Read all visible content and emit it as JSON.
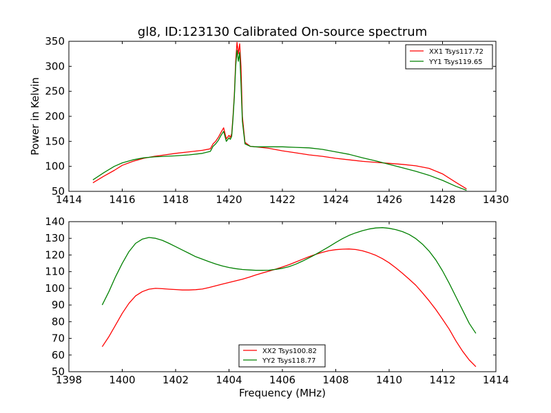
{
  "chart_data": [
    {
      "type": "line",
      "title": "gl8, ID:123130 Calibrated On-source spectrum",
      "xlabel": "",
      "ylabel": "Power in Kelvin",
      "xlim": [
        1414,
        1430
      ],
      "ylim": [
        50,
        350
      ],
      "xticks": [
        1414,
        1416,
        1418,
        1420,
        1422,
        1424,
        1426,
        1428,
        1430
      ],
      "yticks": [
        50,
        100,
        150,
        200,
        250,
        300,
        350
      ],
      "grid": false,
      "legend_position": "top-right",
      "series": [
        {
          "name": "XX1 Tsys117.72",
          "color": "#ff0000",
          "x": [
            1414.9,
            1415.3,
            1415.7,
            1416.0,
            1416.4,
            1416.8,
            1417.2,
            1417.6,
            1418.0,
            1418.5,
            1419.0,
            1419.3,
            1419.4,
            1419.5,
            1419.6,
            1419.7,
            1419.8,
            1419.9,
            1420.0,
            1420.05,
            1420.1,
            1420.15,
            1420.2,
            1420.25,
            1420.3,
            1420.35,
            1420.4,
            1420.45,
            1420.5,
            1420.6,
            1420.8,
            1421.0,
            1421.5,
            1422.0,
            1422.5,
            1423.0,
            1423.5,
            1424.0,
            1424.5,
            1425.0,
            1425.5,
            1426.0,
            1426.5,
            1427.0,
            1427.5,
            1428.0,
            1428.5,
            1428.9
          ],
          "y": [
            67,
            80,
            92,
            102,
            110,
            116,
            120,
            123,
            126,
            129,
            132,
            135,
            145,
            150,
            158,
            168,
            177,
            155,
            162,
            158,
            165,
            200,
            245,
            310,
            348,
            325,
            345,
            300,
            200,
            148,
            140,
            139,
            136,
            131,
            127,
            123,
            120,
            116,
            113,
            110,
            108,
            106,
            104,
            101,
            96,
            85,
            68,
            55
          ]
        },
        {
          "name": "YY1 Tsys119.65",
          "color": "#008000",
          "x": [
            1414.9,
            1415.3,
            1415.7,
            1416.0,
            1416.4,
            1416.8,
            1417.2,
            1417.6,
            1418.0,
            1418.5,
            1419.0,
            1419.3,
            1419.4,
            1419.5,
            1419.6,
            1419.7,
            1419.8,
            1419.9,
            1420.0,
            1420.05,
            1420.1,
            1420.15,
            1420.2,
            1420.25,
            1420.3,
            1420.35,
            1420.4,
            1420.45,
            1420.5,
            1420.6,
            1420.8,
            1421.0,
            1421.5,
            1422.0,
            1422.5,
            1423.0,
            1423.5,
            1424.0,
            1424.5,
            1425.0,
            1425.5,
            1426.0,
            1426.5,
            1427.0,
            1427.5,
            1428.0,
            1428.5,
            1428.9
          ],
          "y": [
            73,
            87,
            100,
            107,
            113,
            117,
            119,
            120,
            121,
            123,
            126,
            130,
            140,
            145,
            152,
            162,
            170,
            150,
            157,
            154,
            160,
            195,
            240,
            300,
            332,
            310,
            328,
            265,
            190,
            145,
            140,
            139,
            139,
            139,
            138,
            137,
            134,
            129,
            124,
            117,
            111,
            104,
            97,
            90,
            82,
            72,
            60,
            52
          ]
        }
      ]
    },
    {
      "type": "line",
      "title": "",
      "xlabel": "Frequency (MHz)",
      "ylabel": "",
      "xlim": [
        1398,
        1414
      ],
      "ylim": [
        50,
        140
      ],
      "xticks": [
        1398,
        1400,
        1402,
        1404,
        1406,
        1408,
        1410,
        1412,
        1414
      ],
      "yticks": [
        50,
        60,
        70,
        80,
        90,
        100,
        110,
        120,
        130,
        140
      ],
      "grid": false,
      "legend_position": "bottom-center",
      "series": [
        {
          "name": "XX2 Tsys100.82",
          "color": "#ff0000",
          "x": [
            1399.25,
            1399.5,
            1399.75,
            1400.0,
            1400.25,
            1400.5,
            1400.75,
            1401.0,
            1401.25,
            1401.5,
            1401.75,
            1402.0,
            1402.25,
            1402.5,
            1402.75,
            1403.0,
            1403.25,
            1403.5,
            1403.75,
            1404.0,
            1404.25,
            1404.5,
            1404.75,
            1405.0,
            1405.25,
            1405.5,
            1405.75,
            1406.0,
            1406.25,
            1406.5,
            1406.75,
            1407.0,
            1407.25,
            1407.5,
            1407.75,
            1408.0,
            1408.25,
            1408.5,
            1408.75,
            1409.0,
            1409.25,
            1409.5,
            1409.75,
            1410.0,
            1410.25,
            1410.5,
            1410.75,
            1411.0,
            1411.25,
            1411.5,
            1411.75,
            1412.0,
            1412.25,
            1412.5,
            1412.75,
            1413.0,
            1413.25
          ],
          "y": [
            65,
            71,
            78,
            85,
            91,
            95.5,
            98,
            99.5,
            100,
            99.8,
            99.5,
            99.3,
            99,
            99,
            99.2,
            99.6,
            100.5,
            101.5,
            102.5,
            103.5,
            104.5,
            105.5,
            106.7,
            108,
            109.2,
            110.3,
            111.5,
            112.8,
            114.2,
            115.8,
            117.4,
            119,
            120.4,
            121.6,
            122.6,
            123.2,
            123.5,
            123.6,
            123.3,
            122.5,
            121.3,
            119.8,
            117.8,
            115.3,
            112.3,
            109,
            105.5,
            101.8,
            97.3,
            92.5,
            87.3,
            81.5,
            75.5,
            68.5,
            62.3,
            57,
            53
          ]
        },
        {
          "name": "YY2 Tsys118.77",
          "color": "#008000",
          "x": [
            1399.25,
            1399.5,
            1399.75,
            1400.0,
            1400.25,
            1400.5,
            1400.75,
            1401.0,
            1401.25,
            1401.5,
            1401.75,
            1402.0,
            1402.25,
            1402.5,
            1402.75,
            1403.0,
            1403.25,
            1403.5,
            1403.75,
            1404.0,
            1404.25,
            1404.5,
            1404.75,
            1405.0,
            1405.25,
            1405.5,
            1405.75,
            1406.0,
            1406.25,
            1406.5,
            1406.75,
            1407.0,
            1407.25,
            1407.5,
            1407.75,
            1408.0,
            1408.25,
            1408.5,
            1408.75,
            1409.0,
            1409.25,
            1409.5,
            1409.75,
            1410.0,
            1410.25,
            1410.5,
            1410.75,
            1411.0,
            1411.25,
            1411.5,
            1411.75,
            1412.0,
            1412.25,
            1412.5,
            1412.75,
            1413.0,
            1413.25
          ],
          "y": [
            90,
            98,
            107,
            115,
            122,
            127,
            129.5,
            130.5,
            130,
            128.8,
            127,
            125,
            123,
            121,
            119,
            117.5,
            116,
            114.6,
            113.4,
            112.5,
            111.8,
            111.3,
            111,
            110.8,
            110.8,
            110.9,
            111.4,
            112,
            113,
            114.5,
            116.3,
            118.3,
            120.4,
            122.7,
            125,
            127.5,
            129.8,
            131.8,
            133.3,
            134.6,
            135.6,
            136.2,
            136.4,
            136,
            135.2,
            134,
            132.3,
            129.8,
            126.5,
            122.3,
            117,
            110.5,
            103,
            95,
            87,
            79,
            73
          ]
        }
      ]
    }
  ]
}
